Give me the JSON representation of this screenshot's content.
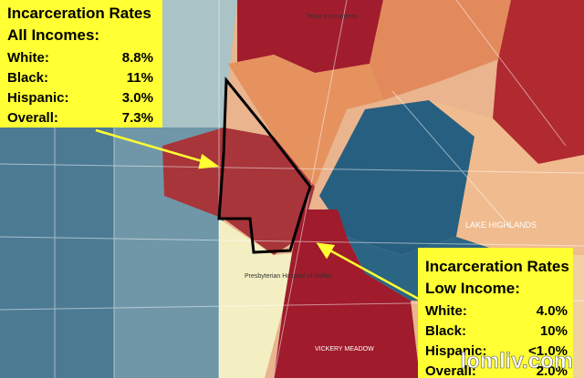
{
  "legend_all": {
    "title": "Incarceration Rates",
    "subtitle": "All Incomes:",
    "rows": [
      [
        "White:",
        "8.8%"
      ],
      [
        "Black:",
        "11%"
      ],
      [
        "Hispanic:",
        "3.0%"
      ],
      [
        "Overall:",
        "7.3%"
      ]
    ]
  },
  "legend_low": {
    "title": "Incarceration Rates",
    "subtitle": "Low Income:",
    "rows": [
      [
        "White:",
        "4.0%"
      ],
      [
        "Black:",
        "10%"
      ],
      [
        "Hispanic:",
        "<1.0%"
      ],
      [
        "Overall:",
        "2.0%"
      ]
    ]
  },
  "map_labels": [
    "Texas Instruments",
    "LAKE HIGHLANDS",
    "Presbyterian Hospital of Dallas",
    "VICKERY MEADOW"
  ],
  "watermark": "lomliv.com"
}
